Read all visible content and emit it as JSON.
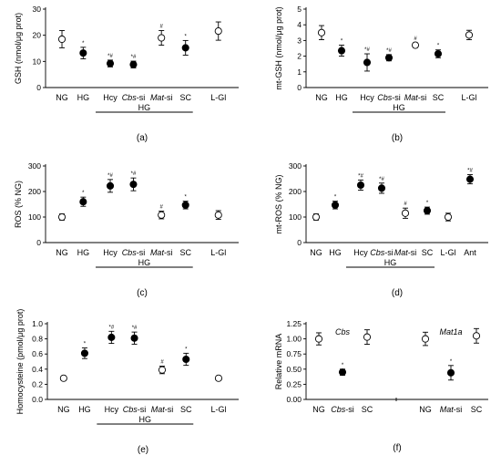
{
  "chart_data": [
    {
      "panel": "(a)",
      "type": "scatter",
      "ylabel": "GSH (nmol/μg prot)",
      "ylim": [
        0,
        30
      ],
      "yticks": [
        0,
        10,
        20,
        30
      ],
      "grid": false,
      "categories": [
        "NG",
        "HG",
        "Hcy",
        "Cbs-si",
        "Mat-si",
        "SC",
        "L-Gl"
      ],
      "group_label": "HG",
      "points": [
        {
          "cat": "NG",
          "value": 18.5,
          "err": 3.3,
          "filled": false,
          "mark": ""
        },
        {
          "cat": "HG",
          "value": 13.2,
          "err": 2.2,
          "filled": true,
          "mark": "*"
        },
        {
          "cat": "Hcy",
          "value": 9.2,
          "err": 1.3,
          "filled": true,
          "mark": "*#"
        },
        {
          "cat": "Cbs-si",
          "value": 8.8,
          "err": 1.3,
          "filled": true,
          "mark": "*#"
        },
        {
          "cat": "Mat-si",
          "value": 19.0,
          "err": 2.8,
          "filled": false,
          "mark": "#"
        },
        {
          "cat": "SC",
          "value": 15.2,
          "err": 2.8,
          "filled": true,
          "mark": "*"
        },
        {
          "cat": "L-Gl",
          "value": 21.6,
          "err": 3.5,
          "filled": false,
          "mark": ""
        }
      ]
    },
    {
      "panel": "(b)",
      "type": "scatter",
      "ylabel": "mt-GSH (nmol/μg prot)",
      "ylim": [
        0,
        5
      ],
      "yticks": [
        0,
        1,
        2,
        3,
        4,
        5
      ],
      "grid": false,
      "categories": [
        "NG",
        "HG",
        "Hcy",
        "Cbs-si",
        "Mat-si",
        "SC",
        "L-Gl"
      ],
      "group_label": "HG",
      "points": [
        {
          "cat": "NG",
          "value": 3.5,
          "err": 0.45,
          "filled": false,
          "mark": ""
        },
        {
          "cat": "HG",
          "value": 2.35,
          "err": 0.35,
          "filled": true,
          "mark": "*"
        },
        {
          "cat": "Hcy",
          "value": 1.6,
          "err": 0.55,
          "filled": true,
          "mark": "*#"
        },
        {
          "cat": "Cbs-si",
          "value": 1.9,
          "err": 0.2,
          "filled": true,
          "mark": "*#"
        },
        {
          "cat": "Mat-si",
          "value": 2.7,
          "err": 0.15,
          "filled": false,
          "mark": "#"
        },
        {
          "cat": "SC",
          "value": 2.15,
          "err": 0.25,
          "filled": true,
          "mark": "*"
        },
        {
          "cat": "L-Gl",
          "value": 3.35,
          "err": 0.3,
          "filled": false,
          "mark": ""
        }
      ]
    },
    {
      "panel": "(c)",
      "type": "scatter",
      "ylabel": "ROS (% NG)",
      "ylim": [
        0,
        300
      ],
      "yticks": [
        0,
        100,
        200,
        300
      ],
      "grid": false,
      "categories": [
        "NG",
        "HG",
        "Hcy",
        "Cbs-si",
        "Mat-si",
        "SC",
        "L-Gl"
      ],
      "group_label": "HG",
      "points": [
        {
          "cat": "NG",
          "value": 100,
          "err": 12,
          "filled": false,
          "mark": ""
        },
        {
          "cat": "HG",
          "value": 160,
          "err": 18,
          "filled": true,
          "mark": "*"
        },
        {
          "cat": "Hcy",
          "value": 222,
          "err": 25,
          "filled": true,
          "mark": "*#"
        },
        {
          "cat": "Cbs-si",
          "value": 228,
          "err": 25,
          "filled": true,
          "mark": "*#"
        },
        {
          "cat": "Mat-si",
          "value": 108,
          "err": 15,
          "filled": false,
          "mark": "#"
        },
        {
          "cat": "SC",
          "value": 147,
          "err": 15,
          "filled": true,
          "mark": "*"
        },
        {
          "cat": "L-Gl",
          "value": 108,
          "err": 17,
          "filled": false,
          "mark": ""
        }
      ]
    },
    {
      "panel": "(d)",
      "type": "scatter",
      "ylabel": "mt-ROS (% NG)",
      "ylim": [
        0,
        300
      ],
      "yticks": [
        0,
        100,
        200,
        300
      ],
      "grid": false,
      "categories": [
        "NG",
        "HG",
        "Hcy",
        "Cbs-si",
        "Mat-si",
        "SC",
        "L-Gl",
        "Ant"
      ],
      "group_label": "HG",
      "points": [
        {
          "cat": "NG",
          "value": 100,
          "err": 12,
          "filled": false,
          "mark": ""
        },
        {
          "cat": "HG",
          "value": 147,
          "err": 15,
          "filled": true,
          "mark": "*"
        },
        {
          "cat": "Hcy",
          "value": 225,
          "err": 20,
          "filled": true,
          "mark": "*#"
        },
        {
          "cat": "Cbs-si",
          "value": 213,
          "err": 20,
          "filled": true,
          "mark": "*#"
        },
        {
          "cat": "Mat-si",
          "value": 115,
          "err": 20,
          "filled": false,
          "mark": "#"
        },
        {
          "cat": "SC",
          "value": 125,
          "err": 14,
          "filled": true,
          "mark": "*"
        },
        {
          "cat": "L-Gl",
          "value": 100,
          "err": 15,
          "filled": false,
          "mark": ""
        },
        {
          "cat": "Ant",
          "value": 248,
          "err": 18,
          "filled": true,
          "mark": "*#"
        }
      ]
    },
    {
      "panel": "(e)",
      "type": "scatter",
      "ylabel": "Homocysteine (pmol/μg prot)",
      "ylim": [
        0,
        1.0
      ],
      "yticks": [
        0.0,
        0.2,
        0.4,
        0.6,
        0.8,
        1.0
      ],
      "grid": false,
      "categories": [
        "NG",
        "HG",
        "Hcy",
        "Cbs-si",
        "Mat-si",
        "SC",
        "L-Gl"
      ],
      "group_label": "HG",
      "points": [
        {
          "cat": "NG",
          "value": 0.28,
          "err": 0.02,
          "filled": false,
          "mark": ""
        },
        {
          "cat": "HG",
          "value": 0.61,
          "err": 0.07,
          "filled": true,
          "mark": "*"
        },
        {
          "cat": "Hcy",
          "value": 0.82,
          "err": 0.08,
          "filled": true,
          "mark": "*#"
        },
        {
          "cat": "Cbs-si",
          "value": 0.81,
          "err": 0.08,
          "filled": true,
          "mark": "*#"
        },
        {
          "cat": "Mat-si",
          "value": 0.39,
          "err": 0.05,
          "filled": false,
          "mark": "#"
        },
        {
          "cat": "SC",
          "value": 0.53,
          "err": 0.08,
          "filled": true,
          "mark": "*"
        },
        {
          "cat": "L-Gl",
          "value": 0.28,
          "err": 0.02,
          "filled": false,
          "mark": ""
        }
      ]
    },
    {
      "panel": "(f)",
      "type": "scatter",
      "ylabel": "Relative mRNA",
      "ylim": [
        0,
        1.25
      ],
      "yticks": [
        0.0,
        0.25,
        0.5,
        0.75,
        1.0,
        1.25
      ],
      "grid": false,
      "categories": [
        "NG",
        "Cbs-si",
        "SC",
        "NG",
        "Mat-si",
        "SC"
      ],
      "group_labels": [
        "Cbs",
        "Mat1a"
      ],
      "points": [
        {
          "cat": "NG",
          "value": 1.0,
          "err": 0.1,
          "filled": false,
          "mark": ""
        },
        {
          "cat": "Cbs-si",
          "value": 0.45,
          "err": 0.05,
          "filled": true,
          "mark": "*"
        },
        {
          "cat": "SC",
          "value": 1.03,
          "err": 0.12,
          "filled": false,
          "mark": ""
        },
        {
          "cat": "NG",
          "value": 1.0,
          "err": 0.11,
          "filled": false,
          "mark": ""
        },
        {
          "cat": "Mat-si",
          "value": 0.44,
          "err": 0.12,
          "filled": true,
          "mark": "*"
        },
        {
          "cat": "SC",
          "value": 1.05,
          "err": 0.12,
          "filled": false,
          "mark": ""
        }
      ]
    }
  ]
}
